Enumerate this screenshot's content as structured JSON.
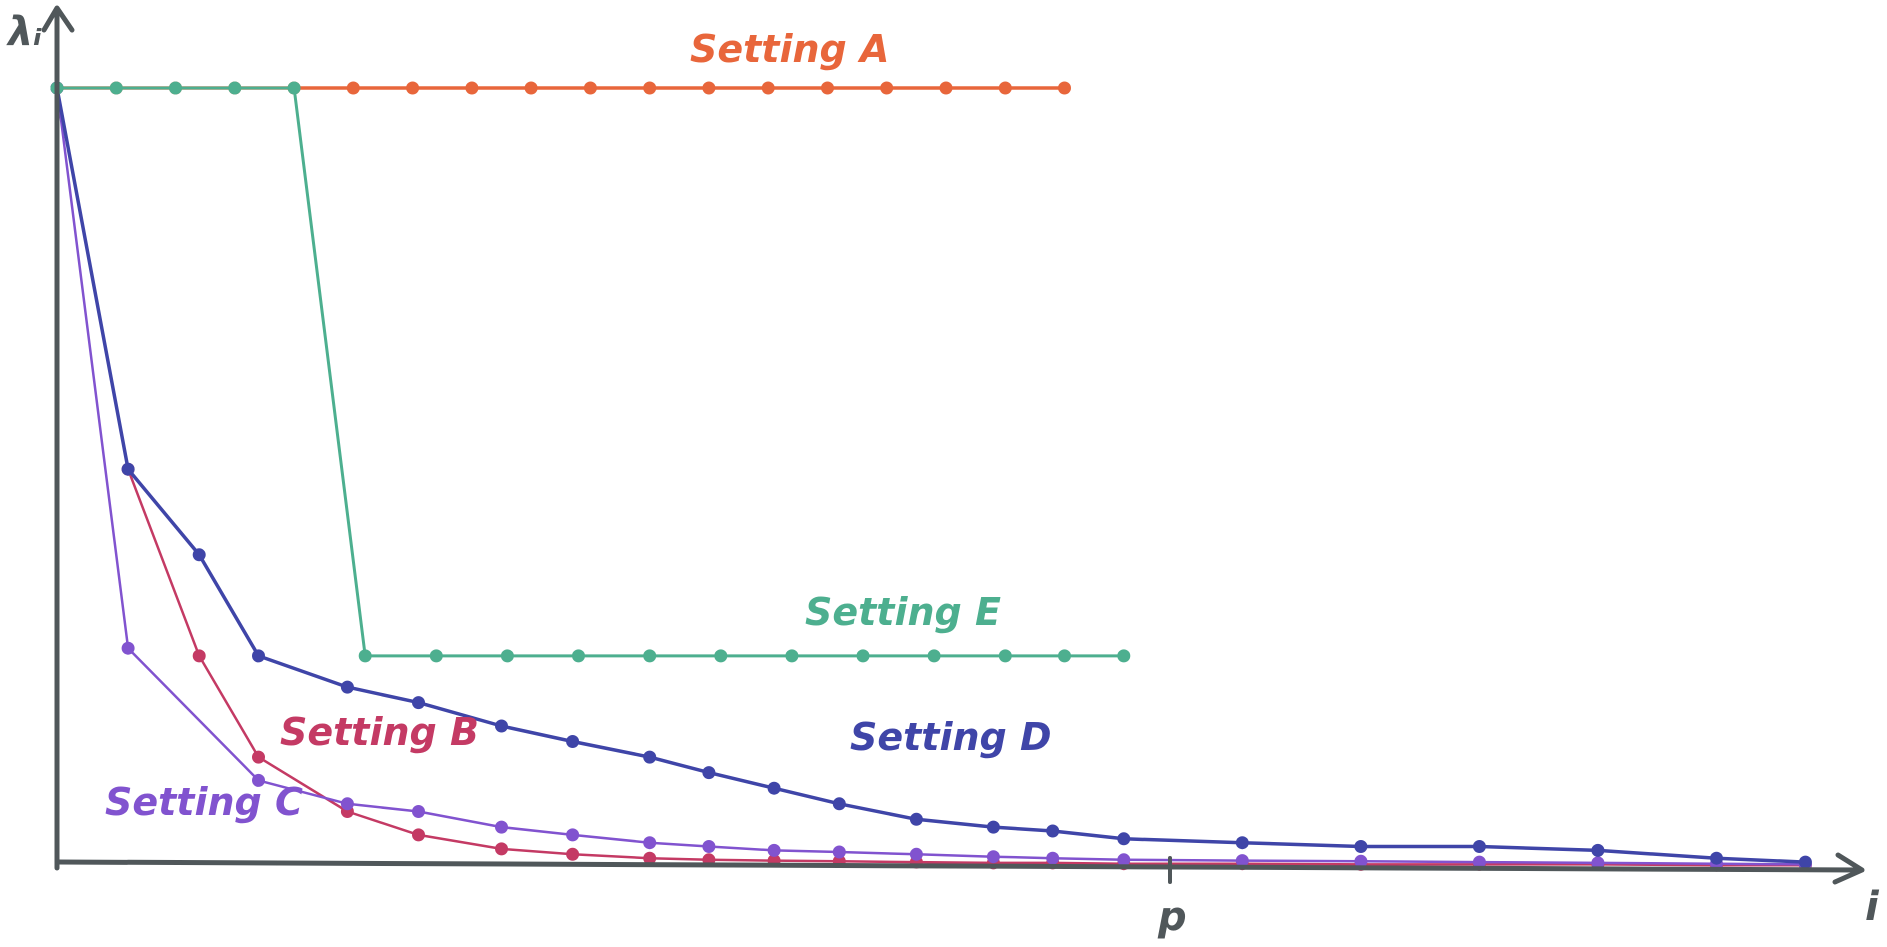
{
  "chart_data": {
    "type": "line",
    "title": "",
    "xlabel": "i",
    "ylabel": "λᵢ",
    "x_marker": "p",
    "xlim": [
      0,
      30
    ],
    "ylim": [
      0,
      1
    ],
    "grid": false,
    "series": [
      {
        "name": "Setting A",
        "color": "#e8663b",
        "x": [
          0,
          1,
          2,
          3,
          4,
          5,
          6,
          7,
          8,
          9,
          10,
          11,
          12,
          13,
          14,
          15,
          16,
          17
        ],
        "values": [
          1.0,
          1.0,
          1.0,
          1.0,
          1.0,
          1.0,
          1.0,
          1.0,
          1.0,
          1.0,
          1.0,
          1.0,
          1.0,
          1.0,
          1.0,
          1.0,
          1.0,
          1.0
        ]
      },
      {
        "name": "Setting B",
        "color": "#c43a64",
        "x": [
          0,
          1.2,
          2.4,
          3.4,
          4.9,
          6.1,
          7.5,
          8.7,
          10.0,
          11.0,
          12.1,
          13.2,
          14.5,
          15.8,
          16.8,
          18.0,
          20.0,
          22.0,
          24.0,
          26.0,
          28.0,
          29.5
        ],
        "values": [
          1.0,
          0.51,
          0.27,
          0.14,
          0.07,
          0.04,
          0.022,
          0.015,
          0.01,
          0.008,
          0.007,
          0.006,
          0.005,
          0.004,
          0.004,
          0.003,
          0.003,
          0.002,
          0.002,
          0.002,
          0.001,
          0.001
        ]
      },
      {
        "name": "Setting C",
        "color": "#8153cf",
        "x": [
          0,
          1.2,
          3.4,
          4.9,
          6.1,
          7.5,
          8.7,
          10.0,
          11.0,
          12.1,
          13.2,
          14.5,
          15.8,
          16.8,
          18.0,
          20.0,
          22.0,
          24.0,
          26.0,
          28.0,
          29.5
        ],
        "values": [
          1.0,
          0.28,
          0.11,
          0.08,
          0.07,
          0.05,
          0.04,
          0.03,
          0.025,
          0.02,
          0.018,
          0.015,
          0.012,
          0.01,
          0.008,
          0.007,
          0.006,
          0.005,
          0.004,
          0.003,
          0.002
        ]
      },
      {
        "name": "Setting D",
        "color": "#3f45a8",
        "x": [
          0,
          1.2,
          2.4,
          3.4,
          4.9,
          6.1,
          7.5,
          8.7,
          10.0,
          11.0,
          12.1,
          13.2,
          14.5,
          15.8,
          16.8,
          18.0,
          20.0,
          22.0,
          24.0,
          26.0,
          28.0,
          29.5
        ],
        "values": [
          1.0,
          0.51,
          0.4,
          0.27,
          0.23,
          0.21,
          0.18,
          0.16,
          0.14,
          0.12,
          0.1,
          0.08,
          0.06,
          0.05,
          0.045,
          0.035,
          0.03,
          0.025,
          0.025,
          0.02,
          0.01,
          0.005
        ]
      },
      {
        "name": "Setting E",
        "color": "#4daf8f",
        "x": [
          0,
          1,
          2,
          3,
          4,
          5.2,
          6.4,
          7.6,
          8.8,
          10.0,
          11.2,
          12.4,
          13.6,
          14.8,
          16.0,
          17.0,
          18.0
        ],
        "values": [
          1.0,
          1.0,
          1.0,
          1.0,
          1.0,
          0.27,
          0.27,
          0.27,
          0.27,
          0.27,
          0.27,
          0.27,
          0.27,
          0.27,
          0.27,
          0.27,
          0.27
        ]
      }
    ]
  }
}
